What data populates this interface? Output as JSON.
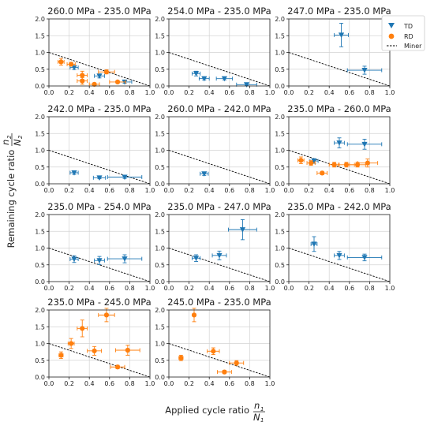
{
  "xlabel": "Applied cycle ratio n1/N1",
  "ylabel": "Remaining cycle ratio n2/N2",
  "xlabel_parts": {
    "text": "Applied cycle ratio",
    "num": "n",
    "num_sub": "1",
    "den": "N",
    "den_sub": "1"
  },
  "ylabel_parts": {
    "text": "Remaining cycle ratio",
    "num": "n",
    "num_sub": "2",
    "den": "N",
    "den_sub": "2"
  },
  "legend": [
    {
      "key": "TD",
      "label": "TD",
      "marker": "triangle-down",
      "color": "#1f77b4"
    },
    {
      "key": "RD",
      "label": "RD",
      "marker": "circle",
      "color": "#ff7f0e"
    },
    {
      "key": "miner",
      "label": "Miner",
      "marker": "dashed-line",
      "color": "#000000"
    }
  ],
  "chart_data": [
    {
      "type": "scatter",
      "title": "260.0 MPa - 235.0 MPa",
      "xlim": [
        0,
        1
      ],
      "ylim": [
        0,
        2
      ],
      "grid": true,
      "xticks": [
        "0.0",
        "0.2",
        "0.4",
        "0.6",
        "0.8",
        "1.0"
      ],
      "yticks": [
        "0.0",
        "0.5",
        "1.0",
        "1.5",
        "2.0"
      ],
      "series": [
        {
          "name": "TD",
          "points": [
            {
              "x": 0.25,
              "y": 0.55,
              "xerr": 0.04,
              "yerr": 0.06
            },
            {
              "x": 0.5,
              "y": 0.3,
              "xerr": 0.05,
              "yerr": 0.06
            },
            {
              "x": 0.75,
              "y": 0.12,
              "xerr": 0.07,
              "yerr": 0.04
            }
          ]
        },
        {
          "name": "RD",
          "points": [
            {
              "x": 0.12,
              "y": 0.72,
              "xerr": 0.03,
              "yerr": 0.1
            },
            {
              "x": 0.22,
              "y": 0.65,
              "xerr": 0.04,
              "yerr": 0.05
            },
            {
              "x": 0.33,
              "y": 0.32,
              "xerr": 0.05,
              "yerr": 0.12
            },
            {
              "x": 0.33,
              "y": 0.15,
              "xerr": 0.05,
              "yerr": 0.1
            },
            {
              "x": 0.45,
              "y": 0.05,
              "xerr": 0.05,
              "yerr": 0.03
            },
            {
              "x": 0.57,
              "y": 0.42,
              "xerr": 0.08,
              "yerr": 0.06
            },
            {
              "x": 0.68,
              "y": 0.12,
              "xerr": 0.08,
              "yerr": 0.04
            }
          ]
        }
      ]
    },
    {
      "type": "scatter",
      "title": "254.0 MPa - 235.0 MPa",
      "xlim": [
        0,
        1
      ],
      "ylim": [
        0,
        2
      ],
      "grid": true,
      "xticks": [
        "0.0",
        "0.2",
        "0.4",
        "0.6",
        "0.8",
        "1.0"
      ],
      "yticks": [
        "0.0",
        "0.5",
        "1.0",
        "1.5",
        "2.0"
      ],
      "series": [
        {
          "name": "TD",
          "points": [
            {
              "x": 0.27,
              "y": 0.37,
              "xerr": 0.04,
              "yerr": 0.07
            },
            {
              "x": 0.35,
              "y": 0.22,
              "xerr": 0.05,
              "yerr": 0.04
            },
            {
              "x": 0.55,
              "y": 0.22,
              "xerr": 0.08,
              "yerr": 0.04
            },
            {
              "x": 0.77,
              "y": 0.04,
              "xerr": 0.1,
              "yerr": 0.03
            }
          ]
        },
        {
          "name": "RD",
          "points": []
        }
      ]
    },
    {
      "type": "scatter",
      "title": "247.0 MPa - 235.0 MPa",
      "xlim": [
        0,
        1
      ],
      "ylim": [
        0,
        2
      ],
      "grid": true,
      "xticks": [
        "0.0",
        "0.2",
        "0.4",
        "0.6",
        "0.8",
        "1.0"
      ],
      "yticks": [
        "0.0",
        "0.5",
        "1.0",
        "1.5",
        "2.0"
      ],
      "series": [
        {
          "name": "TD",
          "points": [
            {
              "x": 0.52,
              "y": 1.52,
              "xerr": 0.07,
              "yerr": 0.35
            },
            {
              "x": 0.75,
              "y": 0.47,
              "xerr": 0.17,
              "yerr": 0.12
            }
          ]
        },
        {
          "name": "RD",
          "points": []
        }
      ]
    },
    {
      "type": "scatter",
      "title": "242.0 MPa - 235.0 MPa",
      "xlim": [
        0,
        1
      ],
      "ylim": [
        0,
        2
      ],
      "grid": true,
      "xticks": [
        "0.0",
        "0.2",
        "0.4",
        "0.6",
        "0.8",
        "1.0"
      ],
      "yticks": [
        "0.0",
        "0.5",
        "1.0",
        "1.5",
        "2.0"
      ],
      "series": [
        {
          "name": "TD",
          "points": [
            {
              "x": 0.25,
              "y": 0.33,
              "xerr": 0.04,
              "yerr": 0.05
            },
            {
              "x": 0.5,
              "y": 0.18,
              "xerr": 0.06,
              "yerr": 0.03
            },
            {
              "x": 0.75,
              "y": 0.2,
              "xerr": 0.17,
              "yerr": 0.04
            }
          ]
        },
        {
          "name": "RD",
          "points": []
        }
      ]
    },
    {
      "type": "scatter",
      "title": "260.0 MPa - 242.0 MPa",
      "xlim": [
        0,
        1
      ],
      "ylim": [
        0,
        2
      ],
      "grid": true,
      "xticks": [
        "0.0",
        "0.2",
        "0.4",
        "0.6",
        "0.8",
        "1.0"
      ],
      "yticks": [
        "0.0",
        "0.5",
        "1.0",
        "1.5",
        "2.0"
      ],
      "series": [
        {
          "name": "TD",
          "points": [
            {
              "x": 0.35,
              "y": 0.3,
              "xerr": 0.04,
              "yerr": 0.05
            }
          ]
        },
        {
          "name": "RD",
          "points": []
        }
      ]
    },
    {
      "type": "scatter",
      "title": "235.0 MPa - 260.0 MPa",
      "xlim": [
        0,
        1
      ],
      "ylim": [
        0,
        2
      ],
      "grid": true,
      "xticks": [
        "0.0",
        "0.2",
        "0.4",
        "0.6",
        "0.8",
        "1.0"
      ],
      "yticks": [
        "0.0",
        "0.5",
        "1.0",
        "1.5",
        "2.0"
      ],
      "series": [
        {
          "name": "TD",
          "points": [
            {
              "x": 0.25,
              "y": 0.68,
              "xerr": 0.04,
              "yerr": 0.07
            },
            {
              "x": 0.5,
              "y": 1.22,
              "xerr": 0.05,
              "yerr": 0.15
            },
            {
              "x": 0.75,
              "y": 1.18,
              "xerr": 0.17,
              "yerr": 0.15
            }
          ]
        },
        {
          "name": "RD",
          "points": [
            {
              "x": 0.12,
              "y": 0.7,
              "xerr": 0.03,
              "yerr": 0.1
            },
            {
              "x": 0.22,
              "y": 0.62,
              "xerr": 0.04,
              "yerr": 0.07
            },
            {
              "x": 0.33,
              "y": 0.32,
              "xerr": 0.05,
              "yerr": 0.05
            },
            {
              "x": 0.45,
              "y": 0.57,
              "xerr": 0.05,
              "yerr": 0.07
            },
            {
              "x": 0.57,
              "y": 0.57,
              "xerr": 0.08,
              "yerr": 0.07
            },
            {
              "x": 0.68,
              "y": 0.57,
              "xerr": 0.08,
              "yerr": 0.07
            },
            {
              "x": 0.78,
              "y": 0.62,
              "xerr": 0.1,
              "yerr": 0.12
            }
          ]
        }
      ]
    },
    {
      "type": "scatter",
      "title": "235.0 MPa - 254.0 MPa",
      "xlim": [
        0,
        1
      ],
      "ylim": [
        0,
        2
      ],
      "grid": true,
      "xticks": [
        "0.0",
        "0.2",
        "0.4",
        "0.6",
        "0.8",
        "1.0"
      ],
      "yticks": [
        "0.0",
        "0.5",
        "1.0",
        "1.5",
        "2.0"
      ],
      "series": [
        {
          "name": "TD",
          "points": [
            {
              "x": 0.25,
              "y": 0.67,
              "xerr": 0.04,
              "yerr": 0.1
            },
            {
              "x": 0.5,
              "y": 0.63,
              "xerr": 0.05,
              "yerr": 0.12
            },
            {
              "x": 0.75,
              "y": 0.68,
              "xerr": 0.17,
              "yerr": 0.12
            }
          ]
        },
        {
          "name": "RD",
          "points": []
        }
      ]
    },
    {
      "type": "scatter",
      "title": "235.0 MPa - 247.0 MPa",
      "xlim": [
        0,
        1
      ],
      "ylim": [
        0,
        2
      ],
      "grid": true,
      "xticks": [
        "0.0",
        "0.2",
        "0.4",
        "0.6",
        "0.8",
        "1.0"
      ],
      "yticks": [
        "0.0",
        "0.5",
        "1.0",
        "1.5",
        "2.0"
      ],
      "series": [
        {
          "name": "TD",
          "points": [
            {
              "x": 0.27,
              "y": 0.7,
              "xerr": 0.04,
              "yerr": 0.1
            },
            {
              "x": 0.5,
              "y": 0.78,
              "xerr": 0.07,
              "yerr": 0.13
            },
            {
              "x": 0.73,
              "y": 1.55,
              "xerr": 0.14,
              "yerr": 0.3
            }
          ]
        },
        {
          "name": "RD",
          "points": []
        }
      ]
    },
    {
      "type": "scatter",
      "title": "235.0 MPa - 242.0 MPa",
      "xlim": [
        0,
        1
      ],
      "ylim": [
        0,
        2
      ],
      "grid": true,
      "xticks": [
        "0.0",
        "0.2",
        "0.4",
        "0.6",
        "0.8",
        "1.0"
      ],
      "yticks": [
        "0.0",
        "0.5",
        "1.0",
        "1.5",
        "2.0"
      ],
      "series": [
        {
          "name": "TD",
          "points": [
            {
              "x": 0.25,
              "y": 1.12,
              "xerr": 0.03,
              "yerr": 0.22
            },
            {
              "x": 0.5,
              "y": 0.78,
              "xerr": 0.05,
              "yerr": 0.12
            },
            {
              "x": 0.75,
              "y": 0.72,
              "xerr": 0.17,
              "yerr": 0.1
            }
          ]
        },
        {
          "name": "RD",
          "points": []
        }
      ]
    },
    {
      "type": "scatter",
      "title": "235.0 MPa - 245.0 MPa",
      "xlim": [
        0,
        1
      ],
      "ylim": [
        0,
        2
      ],
      "grid": true,
      "xticks": [
        "0.0",
        "0.2",
        "0.4",
        "0.6",
        "0.8",
        "1.0"
      ],
      "yticks": [
        "0.0",
        "0.5",
        "1.0",
        "1.5",
        "2.0"
      ],
      "series": [
        {
          "name": "TD",
          "points": []
        },
        {
          "name": "RD",
          "points": [
            {
              "x": 0.12,
              "y": 0.65,
              "xerr": 0.02,
              "yerr": 0.1
            },
            {
              "x": 0.22,
              "y": 1.0,
              "xerr": 0.03,
              "yerr": 0.15
            },
            {
              "x": 0.33,
              "y": 1.45,
              "xerr": 0.05,
              "yerr": 0.25
            },
            {
              "x": 0.45,
              "y": 0.78,
              "xerr": 0.07,
              "yerr": 0.13
            },
            {
              "x": 0.57,
              "y": 1.85,
              "xerr": 0.08,
              "yerr": 0.2
            },
            {
              "x": 0.68,
              "y": 0.3,
              "xerr": 0.07,
              "yerr": 0.05
            },
            {
              "x": 0.78,
              "y": 0.8,
              "xerr": 0.12,
              "yerr": 0.15
            }
          ]
        }
      ]
    },
    {
      "type": "scatter",
      "title": "245.0 MPa - 235.0 MPa",
      "xlim": [
        0,
        1
      ],
      "ylim": [
        0,
        2
      ],
      "grid": true,
      "xticks": [
        "0.0",
        "0.2",
        "0.4",
        "0.6",
        "0.8",
        "1.0"
      ],
      "yticks": [
        "0.0",
        "0.5",
        "1.0",
        "1.5",
        "2.0"
      ],
      "series": [
        {
          "name": "TD",
          "points": []
        },
        {
          "name": "RD",
          "points": [
            {
              "x": 0.12,
              "y": 0.57,
              "xerr": 0.02,
              "yerr": 0.08
            },
            {
              "x": 0.25,
              "y": 1.85,
              "xerr": 0.0,
              "yerr": 0.2
            },
            {
              "x": 0.44,
              "y": 0.77,
              "xerr": 0.06,
              "yerr": 0.1
            },
            {
              "x": 0.55,
              "y": 0.15,
              "xerr": 0.07,
              "yerr": 0.05
            },
            {
              "x": 0.67,
              "y": 0.42,
              "xerr": 0.07,
              "yerr": 0.07
            }
          ]
        }
      ]
    }
  ]
}
